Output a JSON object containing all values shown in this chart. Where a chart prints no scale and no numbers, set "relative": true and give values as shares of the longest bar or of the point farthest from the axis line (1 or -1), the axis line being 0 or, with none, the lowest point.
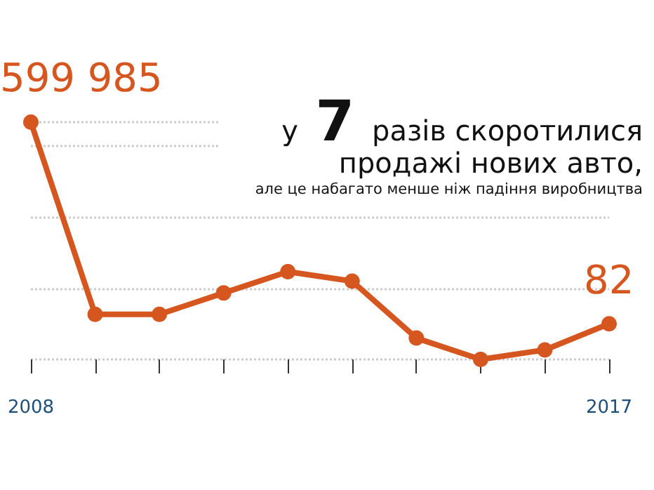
{
  "chart_data": {
    "type": "line",
    "title": "у 7 разів скоротилися продажі нових авто,",
    "subtitle": "але це набагато менше ніж падіння виробництва",
    "categories": [
      "2008",
      null,
      null,
      null,
      null,
      null,
      null,
      null,
      null,
      "2017"
    ],
    "series": [
      {
        "color": "#d6561f",
        "values": [
          1,
          0.19,
          0.19,
          0.28,
          0.37,
          0.33,
          0.09,
          0,
          0.04,
          0.15
        ]
      }
    ],
    "relative": true,
    "annotations": [
      {
        "text": "599 985",
        "x": "2008",
        "y": 1
      },
      {
        "text": "82",
        "x": "2017",
        "y": 0.15
      }
    ],
    "grid": "y",
    "marker": "circle",
    "line_style": "solid"
  }
}
